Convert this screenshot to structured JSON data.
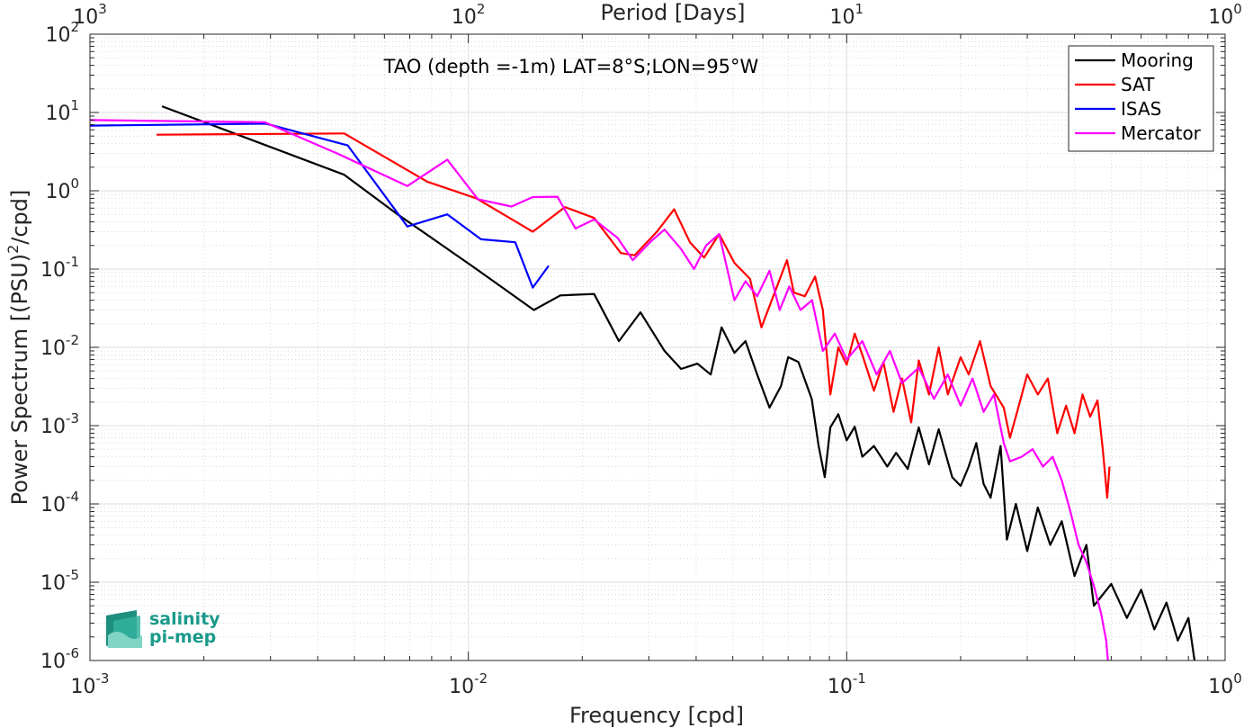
{
  "chart_data": {
    "type": "line",
    "title": "TAO (depth =-1m) LAT=8°S;LON=95°W",
    "xlabel": "Frequency [cpd]",
    "ylabel": "Power Spectrum [(PSU)²/cpd]",
    "top_xlabel": "Period [Days]",
    "xscale": "log",
    "yscale": "log",
    "xlim": [
      0.001,
      1
    ],
    "ylim": [
      1e-06,
      100
    ],
    "grid": true,
    "legend_position": "top-right",
    "x_ticks": [
      {
        "value": 0.001,
        "base": "10",
        "exp": "-3"
      },
      {
        "value": 0.01,
        "base": "10",
        "exp": "-2"
      },
      {
        "value": 0.1,
        "base": "10",
        "exp": "-1"
      },
      {
        "value": 1,
        "base": "10",
        "exp": "0"
      }
    ],
    "top_x_ticks": [
      {
        "value": 0.001,
        "base": "10",
        "exp": "3"
      },
      {
        "value": 0.01,
        "base": "10",
        "exp": "2"
      },
      {
        "value": 0.1,
        "base": "10",
        "exp": "1"
      },
      {
        "value": 1,
        "base": "10",
        "exp": "0"
      }
    ],
    "y_ticks": [
      {
        "value": 1e-06,
        "base": "10",
        "exp": "-6"
      },
      {
        "value": 1e-05,
        "base": "10",
        "exp": "-5"
      },
      {
        "value": 0.0001,
        "base": "10",
        "exp": "-4"
      },
      {
        "value": 0.001,
        "base": "10",
        "exp": "-3"
      },
      {
        "value": 0.01,
        "base": "10",
        "exp": "-2"
      },
      {
        "value": 0.1,
        "base": "10",
        "exp": "-1"
      },
      {
        "value": 1,
        "base": "10",
        "exp": "0"
      },
      {
        "value": 10,
        "base": "10",
        "exp": "1"
      },
      {
        "value": 100,
        "base": "10",
        "exp": "2"
      }
    ],
    "series": [
      {
        "name": "Mooring",
        "color": "#000000",
        "points": [
          [
            0.00155,
            12
          ],
          [
            0.0047,
            1.6
          ],
          [
            0.0065,
            0.5
          ],
          [
            0.008,
            0.25
          ],
          [
            0.0105,
            0.1
          ],
          [
            0.0125,
            0.055
          ],
          [
            0.0149,
            0.03
          ],
          [
            0.0175,
            0.046
          ],
          [
            0.0215,
            0.048
          ],
          [
            0.025,
            0.012
          ],
          [
            0.0285,
            0.028
          ],
          [
            0.033,
            0.009
          ],
          [
            0.0365,
            0.0053
          ],
          [
            0.0403,
            0.0062
          ],
          [
            0.0437,
            0.0045
          ],
          [
            0.0467,
            0.018
          ],
          [
            0.0505,
            0.0085
          ],
          [
            0.054,
            0.012
          ],
          [
            0.058,
            0.0045
          ],
          [
            0.0625,
            0.0017
          ],
          [
            0.067,
            0.0032
          ],
          [
            0.07,
            0.0075
          ],
          [
            0.0745,
            0.0065
          ],
          [
            0.0808,
            0.0022
          ],
          [
            0.0843,
            0.00055
          ],
          [
            0.0875,
            0.00022
          ],
          [
            0.0905,
            0.00095
          ],
          [
            0.095,
            0.0014
          ],
          [
            0.1,
            0.00065
          ],
          [
            0.105,
            0.00097
          ],
          [
            0.11,
            0.0004
          ],
          [
            0.118,
            0.00055
          ],
          [
            0.128,
            0.0003
          ],
          [
            0.135,
            0.00045
          ],
          [
            0.145,
            0.00028
          ],
          [
            0.155,
            0.00095
          ],
          [
            0.165,
            0.00032
          ],
          [
            0.175,
            0.0009
          ],
          [
            0.19,
            0.00022
          ],
          [
            0.2,
            0.00017
          ],
          [
            0.21,
            0.0003
          ],
          [
            0.22,
            0.0006
          ],
          [
            0.23,
            0.00018
          ],
          [
            0.24,
            0.00012
          ],
          [
            0.255,
            0.00055
          ],
          [
            0.265,
            3.5e-05
          ],
          [
            0.28,
            0.0001
          ],
          [
            0.3,
            2.5e-05
          ],
          [
            0.32,
            9e-05
          ],
          [
            0.345,
            3e-05
          ],
          [
            0.37,
            6e-05
          ],
          [
            0.4,
            1.2e-05
          ],
          [
            0.43,
            3e-05
          ],
          [
            0.45,
            5e-06
          ],
          [
            0.5,
            9.5e-06
          ],
          [
            0.55,
            3.5e-06
          ],
          [
            0.6,
            8e-06
          ],
          [
            0.65,
            2.5e-06
          ],
          [
            0.7,
            5.5e-06
          ],
          [
            0.75,
            1.8e-06
          ],
          [
            0.8,
            3.5e-06
          ],
          [
            0.83,
            1e-06
          ]
        ]
      },
      {
        "name": "SAT",
        "color": "#ff0000",
        "points": [
          [
            0.0015,
            5.2
          ],
          [
            0.0047,
            5.4
          ],
          [
            0.0078,
            1.3
          ],
          [
            0.0105,
            0.8
          ],
          [
            0.0148,
            0.3
          ],
          [
            0.018,
            0.62
          ],
          [
            0.0215,
            0.45
          ],
          [
            0.0253,
            0.16
          ],
          [
            0.0275,
            0.15
          ],
          [
            0.0315,
            0.3
          ],
          [
            0.035,
            0.58
          ],
          [
            0.0385,
            0.22
          ],
          [
            0.042,
            0.14
          ],
          [
            0.046,
            0.28
          ],
          [
            0.0505,
            0.12
          ],
          [
            0.0555,
            0.075
          ],
          [
            0.0595,
            0.018
          ],
          [
            0.0645,
            0.05
          ],
          [
            0.0695,
            0.13
          ],
          [
            0.0725,
            0.05
          ],
          [
            0.0775,
            0.045
          ],
          [
            0.0825,
            0.08
          ],
          [
            0.0865,
            0.03
          ],
          [
            0.0905,
            0.0025
          ],
          [
            0.095,
            0.01
          ],
          [
            0.1,
            0.006
          ],
          [
            0.105,
            0.015
          ],
          [
            0.11,
            0.008
          ],
          [
            0.118,
            0.0028
          ],
          [
            0.125,
            0.0065
          ],
          [
            0.133,
            0.0015
          ],
          [
            0.14,
            0.004
          ],
          [
            0.148,
            0.0011
          ],
          [
            0.155,
            0.0068
          ],
          [
            0.165,
            0.0025
          ],
          [
            0.175,
            0.01
          ],
          [
            0.185,
            0.0025
          ],
          [
            0.2,
            0.0075
          ],
          [
            0.21,
            0.0045
          ],
          [
            0.225,
            0.012
          ],
          [
            0.24,
            0.0032
          ],
          [
            0.26,
            0.0017
          ],
          [
            0.27,
            0.0007
          ],
          [
            0.285,
            0.0018
          ],
          [
            0.3,
            0.0045
          ],
          [
            0.32,
            0.0025
          ],
          [
            0.34,
            0.004
          ],
          [
            0.36,
            0.0008
          ],
          [
            0.38,
            0.0018
          ],
          [
            0.4,
            0.0008
          ],
          [
            0.42,
            0.0025
          ],
          [
            0.44,
            0.0013
          ],
          [
            0.46,
            0.0021
          ],
          [
            0.475,
            0.0005
          ],
          [
            0.488,
            0.00012
          ],
          [
            0.495,
            0.0003
          ]
        ]
      },
      {
        "name": "ISAS",
        "color": "#0000ff",
        "points": [
          [
            0.001,
            6.8
          ],
          [
            0.00292,
            7.2
          ],
          [
            0.0048,
            3.8
          ],
          [
            0.0069,
            0.35
          ],
          [
            0.0088,
            0.5
          ],
          [
            0.0108,
            0.24
          ],
          [
            0.0133,
            0.22
          ],
          [
            0.0148,
            0.058
          ],
          [
            0.0163,
            0.11
          ]
        ]
      },
      {
        "name": "Mercator",
        "color": "#ff00ff",
        "points": [
          [
            0.001,
            8
          ],
          [
            0.0029,
            7.5
          ],
          [
            0.0045,
            3
          ],
          [
            0.0069,
            1.15
          ],
          [
            0.0088,
            2.5
          ],
          [
            0.0106,
            0.78
          ],
          [
            0.013,
            0.63
          ],
          [
            0.0148,
            0.83
          ],
          [
            0.0172,
            0.84
          ],
          [
            0.0192,
            0.33
          ],
          [
            0.0215,
            0.43
          ],
          [
            0.0248,
            0.25
          ],
          [
            0.0272,
            0.13
          ],
          [
            0.0305,
            0.23
          ],
          [
            0.033,
            0.32
          ],
          [
            0.0365,
            0.18
          ],
          [
            0.0395,
            0.1
          ],
          [
            0.0425,
            0.2
          ],
          [
            0.046,
            0.28
          ],
          [
            0.0505,
            0.04
          ],
          [
            0.054,
            0.07
          ],
          [
            0.058,
            0.045
          ],
          [
            0.0625,
            0.095
          ],
          [
            0.0665,
            0.03
          ],
          [
            0.0705,
            0.06
          ],
          [
            0.0755,
            0.03
          ],
          [
            0.081,
            0.04
          ],
          [
            0.0865,
            0.009
          ],
          [
            0.093,
            0.015
          ],
          [
            0.1,
            0.007
          ],
          [
            0.11,
            0.012
          ],
          [
            0.12,
            0.0045
          ],
          [
            0.13,
            0.009
          ],
          [
            0.14,
            0.0035
          ],
          [
            0.155,
            0.0055
          ],
          [
            0.17,
            0.0022
          ],
          [
            0.185,
            0.0045
          ],
          [
            0.2,
            0.0018
          ],
          [
            0.215,
            0.004
          ],
          [
            0.23,
            0.0015
          ],
          [
            0.245,
            0.0025
          ],
          [
            0.26,
            0.0006
          ],
          [
            0.27,
            0.00035
          ],
          [
            0.29,
            0.0004
          ],
          [
            0.31,
            0.0005
          ],
          [
            0.33,
            0.0003
          ],
          [
            0.35,
            0.0004
          ],
          [
            0.37,
            0.0002
          ],
          [
            0.39,
            8e-05
          ],
          [
            0.41,
            3e-05
          ],
          [
            0.43,
            1.8e-05
          ],
          [
            0.45,
            9e-06
          ],
          [
            0.47,
            4e-06
          ],
          [
            0.485,
            1.8e-06
          ],
          [
            0.49,
            1e-06
          ]
        ]
      }
    ]
  },
  "logo": {
    "line1": "salinity",
    "line2": "pi-mep",
    "color": "#1a9a8a"
  }
}
